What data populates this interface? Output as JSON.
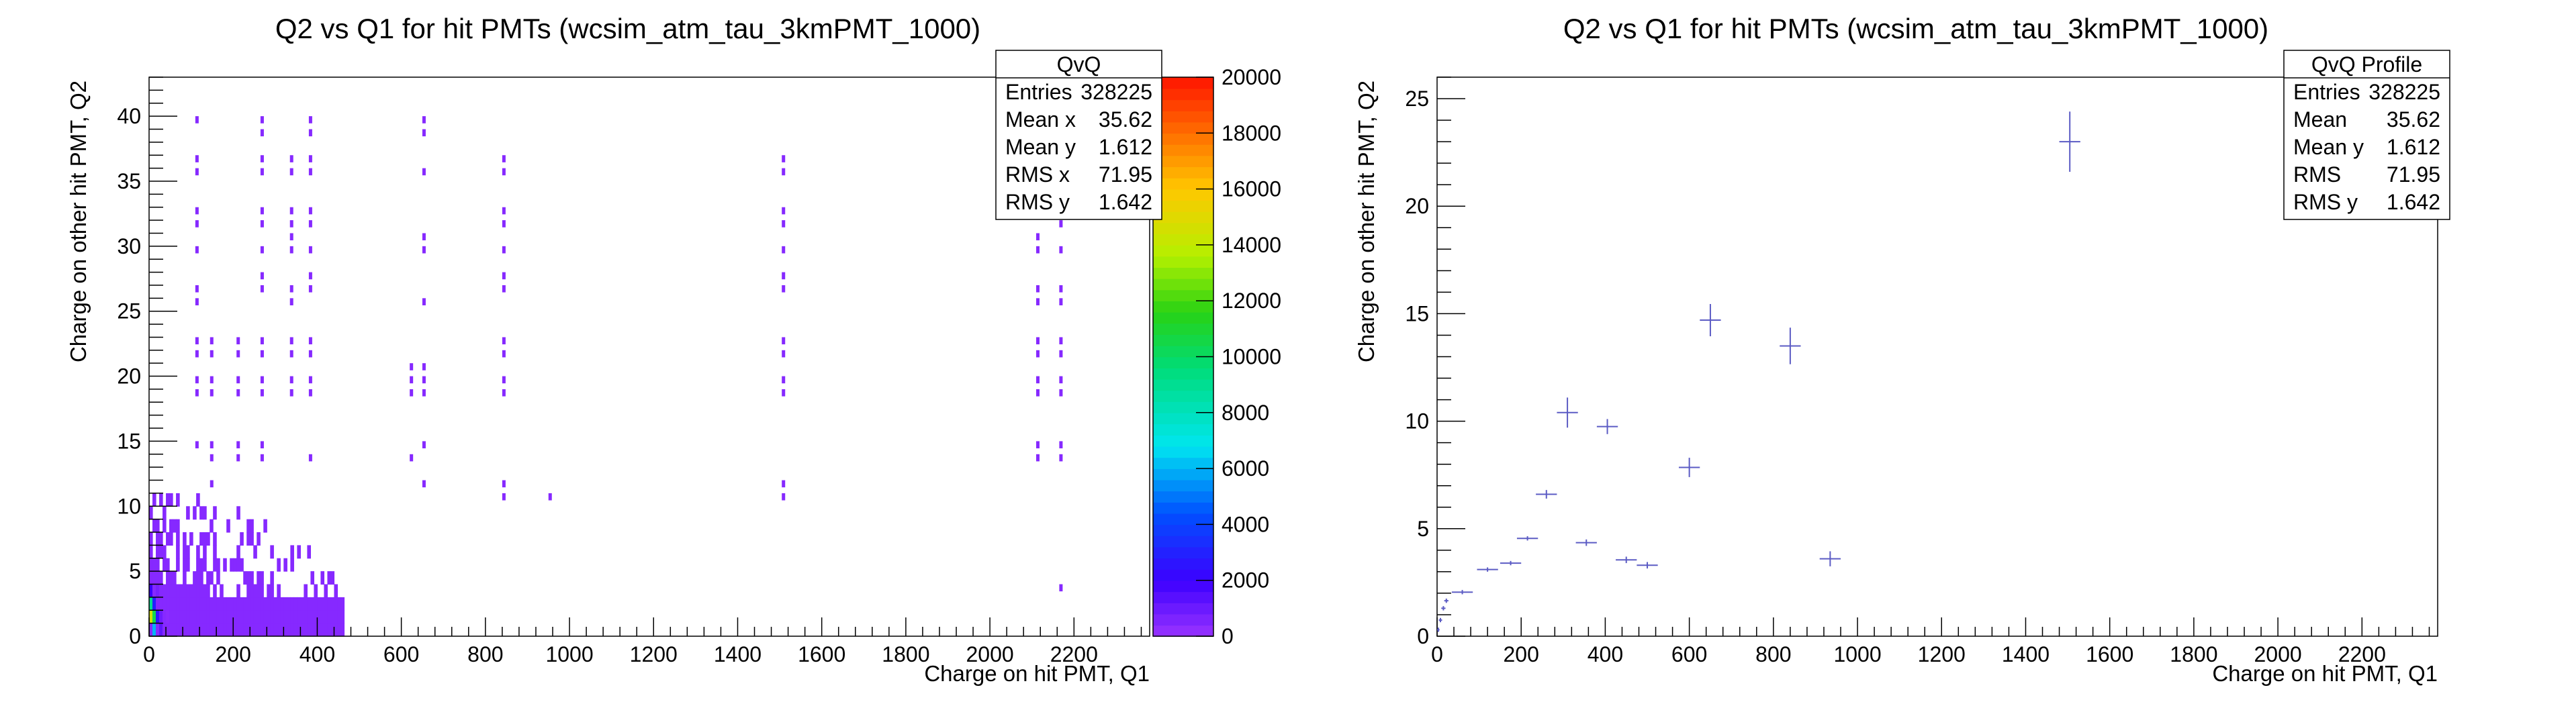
{
  "chart_data": [
    {
      "type": "heatmap",
      "title": "Q2 vs Q1 for hit PMTs (wcsim_atm_tau_3kmPMT_1000)",
      "xlabel": "Charge on hit PMT, Q1",
      "ylabel": "Charge on other hit PMT, Q2",
      "xlim": [
        0,
        2380
      ],
      "ylim": [
        0,
        43
      ],
      "x_ticks": [
        "0",
        "200",
        "400",
        "600",
        "800",
        "1000",
        "1200",
        "1400",
        "1600",
        "1800",
        "2000",
        "2200"
      ],
      "y_ticks": [
        "0",
        "5",
        "10",
        "15",
        "20",
        "25",
        "30",
        "35",
        "40"
      ],
      "z_ticks": [
        "0",
        "2000",
        "4000",
        "6000",
        "8000",
        "10000",
        "12000",
        "14000",
        "16000",
        "18000",
        "20000"
      ],
      "zlim": [
        0,
        20000
      ],
      "stats": {
        "title": "QvQ",
        "rows": [
          {
            "label": "Entries",
            "value": "328225"
          },
          {
            "label": "Mean x",
            "value": "35.62"
          },
          {
            "label": "Mean y",
            "value": "1.612"
          },
          {
            "label": "RMS x",
            "value": "71.95"
          },
          {
            "label": "RMS y",
            "value": "1.642"
          }
        ]
      },
      "cells": [
        [
          2,
          1,
          14500
        ],
        [
          2,
          2,
          9000
        ],
        [
          10,
          1,
          10500
        ],
        [
          10,
          0,
          6000
        ],
        [
          10,
          2,
          3000
        ],
        [
          18,
          1,
          2500
        ],
        [
          2,
          3,
          2000
        ],
        [
          26,
          0,
          1200
        ],
        [
          26,
          1,
          900
        ],
        [
          18,
          3,
          700
        ],
        [
          34,
          2,
          400
        ],
        [
          42,
          1,
          300
        ]
      ],
      "columns": [
        {
          "x": 110,
          "ys": [
            39,
            36,
            35,
            32,
            31,
            29,
            26,
            25,
            22,
            21,
            19,
            18,
            14
          ]
        },
        {
          "x": 145,
          "ys": [
            22,
            21,
            19,
            18,
            14,
            13,
            11
          ]
        },
        {
          "x": 208,
          "ys": [
            22,
            21,
            19,
            18,
            14,
            13
          ]
        },
        {
          "x": 265,
          "ys": [
            39,
            38,
            36,
            35,
            32,
            31,
            29,
            27,
            26,
            22,
            21,
            19,
            18,
            14,
            13
          ]
        },
        {
          "x": 335,
          "ys": [
            36,
            35,
            32,
            31,
            30,
            29,
            26,
            25,
            22,
            21,
            19,
            18
          ]
        },
        {
          "x": 380,
          "ys": [
            39,
            38,
            36,
            35,
            32,
            31,
            29,
            27,
            26,
            22,
            21,
            19,
            18,
            13
          ]
        },
        {
          "x": 620,
          "ys": [
            20,
            19,
            18,
            13
          ]
        },
        {
          "x": 650,
          "ys": [
            39,
            38,
            35,
            30,
            29,
            25,
            20,
            19,
            18,
            14,
            11
          ]
        },
        {
          "x": 840,
          "ys": [
            36,
            35,
            32,
            31,
            29,
            27,
            26,
            22,
            21,
            19,
            18,
            11,
            10
          ]
        },
        {
          "x": 950,
          "ys": [
            10
          ]
        },
        {
          "x": 1505,
          "ys": [
            36,
            35,
            32,
            31,
            29,
            27,
            26,
            22,
            21,
            19,
            18,
            11,
            10
          ]
        },
        {
          "x": 2110,
          "ys": [
            30,
            29,
            26,
            25,
            22,
            21,
            19,
            18,
            14,
            13
          ]
        },
        {
          "x": 2165,
          "ys": [
            32,
            31,
            29,
            26,
            25,
            22,
            21,
            19,
            18,
            14,
            13,
            3
          ]
        }
      ]
    },
    {
      "type": "scatter",
      "title": "Q2 vs Q1 for hit PMTs (wcsim_atm_tau_3kmPMT_1000)",
      "xlabel": "Charge on hit PMT, Q1",
      "ylabel": "Charge on other hit PMT, Q2",
      "xlim": [
        0,
        2380
      ],
      "ylim": [
        0,
        26
      ],
      "x_ticks": [
        "0",
        "200",
        "400",
        "600",
        "800",
        "1000",
        "1200",
        "1400",
        "1600",
        "1800",
        "2000",
        "2200"
      ],
      "y_ticks": [
        "0",
        "5",
        "10",
        "15",
        "20",
        "25"
      ],
      "stats": {
        "title": "QvQ Profile",
        "rows": [
          {
            "label": "Entries",
            "value": "328225"
          },
          {
            "label": "Mean",
            "value": "35.62"
          },
          {
            "label": "Mean y",
            "value": "1.612"
          },
          {
            "label": "RMS",
            "value": "71.95"
          },
          {
            "label": "RMS y",
            "value": "1.642"
          }
        ]
      },
      "points": [
        {
          "x": 3,
          "y": 0.3,
          "xerr": 3,
          "yerr": 0.1
        },
        {
          "x": 8,
          "y": 0.75,
          "xerr": 4,
          "yerr": 0.1
        },
        {
          "x": 15,
          "y": 1.3,
          "xerr": 5,
          "yerr": 0.1
        },
        {
          "x": 22,
          "y": 1.65,
          "xerr": 5,
          "yerr": 0.1
        },
        {
          "x": 60,
          "y": 2.05,
          "xerr": 25,
          "yerr": 0.1
        },
        {
          "x": 120,
          "y": 3.1,
          "xerr": 25,
          "yerr": 0.1
        },
        {
          "x": 175,
          "y": 3.4,
          "xerr": 25,
          "yerr": 0.1
        },
        {
          "x": 215,
          "y": 4.55,
          "xerr": 25,
          "yerr": 0.1
        },
        {
          "x": 260,
          "y": 6.6,
          "xerr": 25,
          "yerr": 0.2
        },
        {
          "x": 310,
          "y": 10.4,
          "xerr": 25,
          "yerr": 0.7
        },
        {
          "x": 355,
          "y": 4.35,
          "xerr": 25,
          "yerr": 0.15
        },
        {
          "x": 405,
          "y": 9.75,
          "xerr": 25,
          "yerr": 0.35
        },
        {
          "x": 450,
          "y": 3.55,
          "xerr": 25,
          "yerr": 0.15
        },
        {
          "x": 500,
          "y": 3.3,
          "xerr": 25,
          "yerr": 0.15
        },
        {
          "x": 600,
          "y": 7.85,
          "xerr": 25,
          "yerr": 0.45
        },
        {
          "x": 650,
          "y": 14.7,
          "xerr": 25,
          "yerr": 0.75
        },
        {
          "x": 840,
          "y": 13.5,
          "xerr": 25,
          "yerr": 0.85
        },
        {
          "x": 935,
          "y": 3.6,
          "xerr": 25,
          "yerr": 0.35
        },
        {
          "x": 1505,
          "y": 23.0,
          "xerr": 25,
          "yerr": 1.4
        }
      ]
    }
  ]
}
